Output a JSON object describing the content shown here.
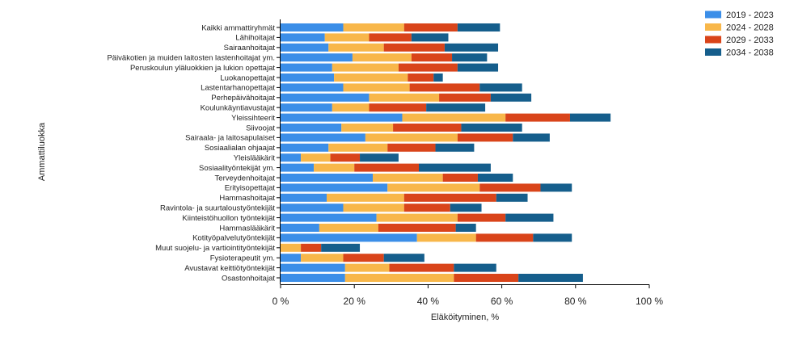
{
  "chart_data": {
    "type": "bar",
    "orientation": "horizontal",
    "stacked": true,
    "title": "",
    "xlabel": "Eläköityminen, %",
    "ylabel": "Ammattiluokka",
    "xlim": [
      0,
      100
    ],
    "x_ticks": [
      "0 %",
      "20 %",
      "40 %",
      "60 %",
      "80 %",
      "100 %"
    ],
    "grid": false,
    "legend_position": "top-right",
    "categories": [
      "Kaikki ammattiryhmät",
      "Lähihoitajat",
      "Sairaanhoitajat",
      "Päiväkotien ja muiden laitosten lastenhoitajat ym.",
      "Peruskoulun yläluokkien ja lukion opettajat",
      "Luokanopettajat",
      "Lastentarhanopettajat",
      "Perhepäivähoitajat",
      "Koulunkäyntiavustajat",
      "Yleissihteerit",
      "Siivoojat",
      "Sairaala- ja laitosapulaiset",
      "Sosiaalialan ohjaajat",
      "Yleislääkärit",
      "Sosiaalityöntekijät ym.",
      "Terveydenhoitajat",
      "Erityisopettajat",
      "Hammashoitajat",
      "Ravintola- ja suurtaloustyöntekijät",
      "Kiinteistöhuollon työntekijät",
      "Hammaslääkärit",
      "Kotityöpalvelutyöntekijät",
      "Muut suojelu- ja vartiointityöntekijät",
      "Fysioterapeutit ym.",
      "Avustavat keittiötyöntekijät",
      "Osastonhoitajat"
    ],
    "series": [
      {
        "name": "2019 - 2023",
        "color": "#3b8ee8",
        "values": [
          17,
          12,
          13,
          19.5,
          14,
          14.5,
          17,
          24,
          14,
          33,
          16.5,
          23,
          13,
          5.5,
          9,
          25,
          29,
          12.5,
          17,
          26,
          10.5,
          37,
          0,
          5.5,
          17.5,
          17.5
        ]
      },
      {
        "name": "2024 - 2028",
        "color": "#f8b74a",
        "values": [
          16.5,
          12,
          15,
          16,
          18,
          20,
          18,
          19,
          10,
          28,
          14,
          25,
          16,
          8,
          11,
          19,
          25,
          21,
          16.5,
          22,
          16,
          16,
          5.5,
          11.5,
          12,
          29.5
        ]
      },
      {
        "name": "2029 - 2033",
        "color": "#d9441a",
        "values": [
          14.5,
          11.5,
          16.5,
          11,
          16,
          7,
          19,
          14,
          15.5,
          17.5,
          18.5,
          15,
          13,
          8,
          17.5,
          9.5,
          16.5,
          25,
          12.5,
          13,
          21,
          15.5,
          5.5,
          11,
          17.5,
          17.5
        ]
      },
      {
        "name": "2034 - 2038",
        "color": "#155e8c",
        "values": [
          11.5,
          10,
          14.5,
          9.5,
          11,
          2.5,
          11.5,
          11,
          16,
          11,
          16.5,
          10,
          10.5,
          10.5,
          19.5,
          9.5,
          8.5,
          8.5,
          8.5,
          13,
          5.5,
          10.5,
          10.5,
          11,
          11.5,
          17.5
        ]
      }
    ]
  }
}
